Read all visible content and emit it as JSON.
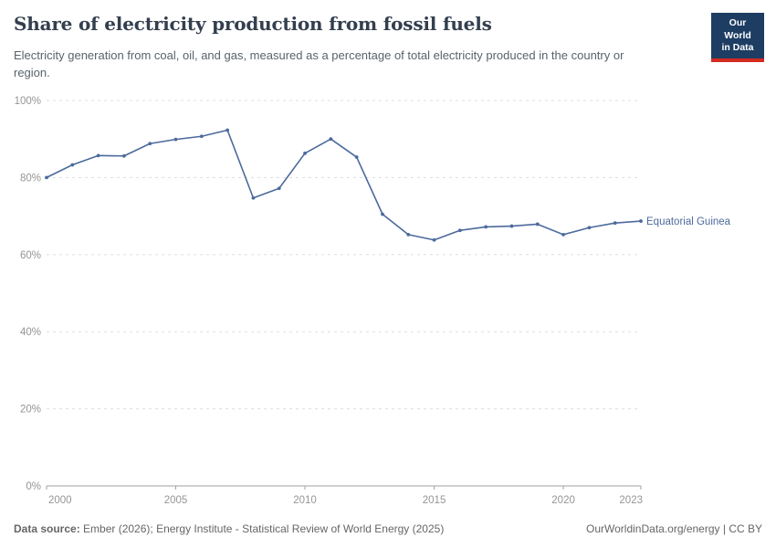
{
  "header": {
    "title": "Share of electricity production from fossil fuels",
    "subtitle": "Electricity generation from coal, oil, and gas, measured as a percentage of total electricity produced in the country or region."
  },
  "logo": {
    "line1": "Our World",
    "line2": "in Data",
    "bg_color": "#1d3d63",
    "accent_color": "#d42b21"
  },
  "chart_data": {
    "type": "line",
    "title": "Share of electricity production from fossil fuels",
    "x": [
      2000,
      2001,
      2002,
      2003,
      2004,
      2005,
      2006,
      2007,
      2008,
      2009,
      2010,
      2011,
      2012,
      2013,
      2014,
      2015,
      2016,
      2017,
      2018,
      2019,
      2020,
      2021,
      2022,
      2023
    ],
    "series": [
      {
        "name": "Equatorial Guinea",
        "color": "#4c6a9c",
        "values": [
          80.0,
          83.3,
          85.7,
          85.6,
          88.8,
          89.9,
          90.7,
          92.3,
          74.7,
          77.2,
          86.3,
          90.0,
          85.3,
          70.5,
          65.2,
          63.8,
          66.3,
          67.2,
          67.4,
          67.9,
          65.2,
          67.0,
          68.2,
          68.7
        ]
      }
    ],
    "xlabel": "",
    "ylabel": "",
    "ylim": [
      0,
      100
    ],
    "yticks": [
      0,
      20,
      40,
      60,
      80,
      100
    ],
    "ytick_suffix": "%",
    "xticks": [
      2000,
      2005,
      2010,
      2015,
      2020,
      2023
    ],
    "grid": "horizontal-dashed",
    "legend_position": "line-end-label",
    "grid_color": "#dddddd",
    "axis_color": "#a0a0a0",
    "tick_label_color": "#959595"
  },
  "footer": {
    "source_label": "Data source:",
    "source_text": " Ember (2026); Energy Institute - Statistical Review of World Energy (2025)",
    "link_text": "OurWorldinData.org/energy | CC BY"
  }
}
